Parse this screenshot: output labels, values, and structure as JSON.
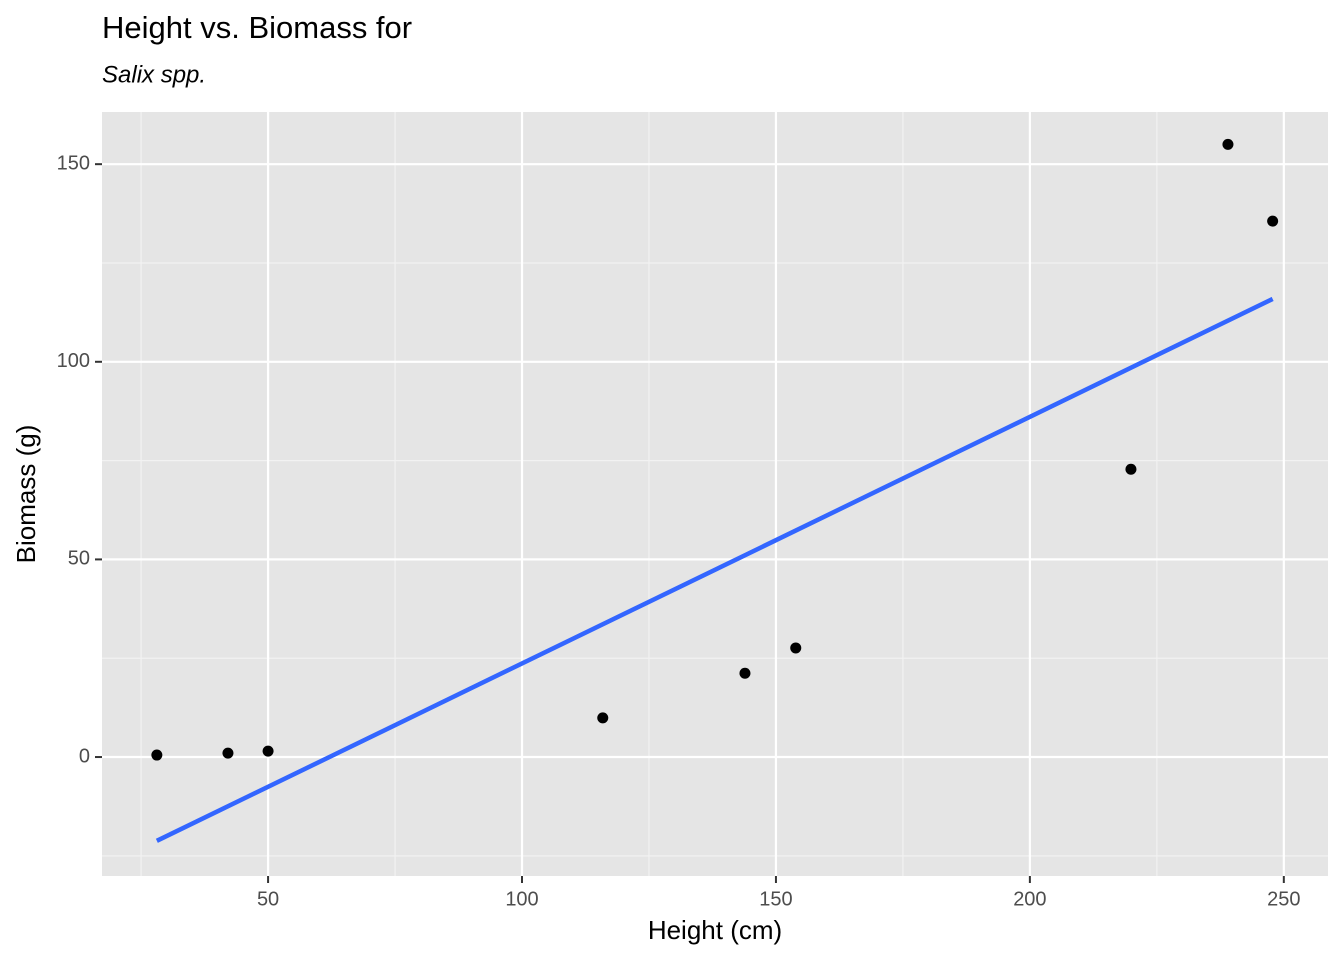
{
  "chart_data": {
    "type": "scatter",
    "title": "Height vs. Biomass for",
    "subtitle": "Salix spp.",
    "x_label": "Height (cm)",
    "y_label": "Biomass (g)",
    "x": [
      28.1,
      42.1,
      50,
      115.9,
      143.9,
      153.9,
      219.9,
      239,
      247.8
    ],
    "values": [
      0.5,
      1.0,
      1.5,
      9.9,
      21.2,
      27.6,
      72.8,
      155.0,
      135.6
    ],
    "color": "#000000",
    "fit": {
      "x": [
        28.1,
        247.8
      ],
      "values": [
        -21.2,
        115.9
      ],
      "color": "#3366ff"
    },
    "xlim": [
      17.3,
      258.7
    ],
    "ylim": [
      -30.1,
      163.2
    ],
    "xticks": [
      50,
      100,
      150,
      200,
      250
    ],
    "yticks": [
      0,
      50,
      100,
      150
    ],
    "xminor": [
      25,
      75,
      125,
      175,
      225
    ],
    "yminor": [
      -25,
      25,
      75,
      125
    ],
    "grid": true
  }
}
